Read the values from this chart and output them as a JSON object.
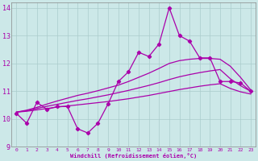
{
  "xlabel": "Windchill (Refroidissement éolien,°C)",
  "background_color": "#cce8e8",
  "grid_color": "#aacccc",
  "line_color": "#aa00aa",
  "xlim": [
    -0.5,
    23.5
  ],
  "ylim": [
    9,
    14.2
  ],
  "yticks": [
    9,
    10,
    11,
    12,
    13,
    14
  ],
  "xticks": [
    0,
    1,
    2,
    3,
    4,
    5,
    6,
    7,
    8,
    9,
    10,
    11,
    12,
    13,
    14,
    15,
    16,
    17,
    18,
    19,
    20,
    21,
    22,
    23
  ],
  "x": [
    0,
    1,
    2,
    3,
    4,
    5,
    6,
    7,
    8,
    9,
    10,
    11,
    12,
    13,
    14,
    15,
    16,
    17,
    18,
    19,
    20,
    21,
    22,
    23
  ],
  "line1": [
    10.2,
    9.85,
    10.6,
    10.35,
    10.45,
    10.45,
    9.65,
    9.5,
    9.85,
    10.55,
    11.35,
    11.7,
    12.4,
    12.25,
    12.7,
    14.0,
    13.0,
    12.8,
    12.2,
    12.2,
    11.35,
    11.35,
    11.3,
    11.0
  ],
  "trend_top": [
    10.25,
    10.32,
    10.42,
    10.54,
    10.65,
    10.75,
    10.85,
    10.93,
    11.02,
    11.12,
    11.22,
    11.35,
    11.5,
    11.65,
    11.82,
    12.0,
    12.1,
    12.15,
    12.18,
    12.18,
    12.15,
    11.9,
    11.5,
    11.05
  ],
  "trend_mid": [
    10.25,
    10.3,
    10.38,
    10.46,
    10.53,
    10.6,
    10.67,
    10.73,
    10.8,
    10.87,
    10.95,
    11.03,
    11.12,
    11.21,
    11.31,
    11.42,
    11.52,
    11.6,
    11.67,
    11.73,
    11.78,
    11.45,
    11.2,
    11.0
  ],
  "trend_bot": [
    10.25,
    10.28,
    10.33,
    10.38,
    10.43,
    10.47,
    10.51,
    10.55,
    10.59,
    10.63,
    10.68,
    10.73,
    10.79,
    10.85,
    10.92,
    10.99,
    11.06,
    11.12,
    11.18,
    11.23,
    11.27,
    11.1,
    10.98,
    10.9
  ]
}
